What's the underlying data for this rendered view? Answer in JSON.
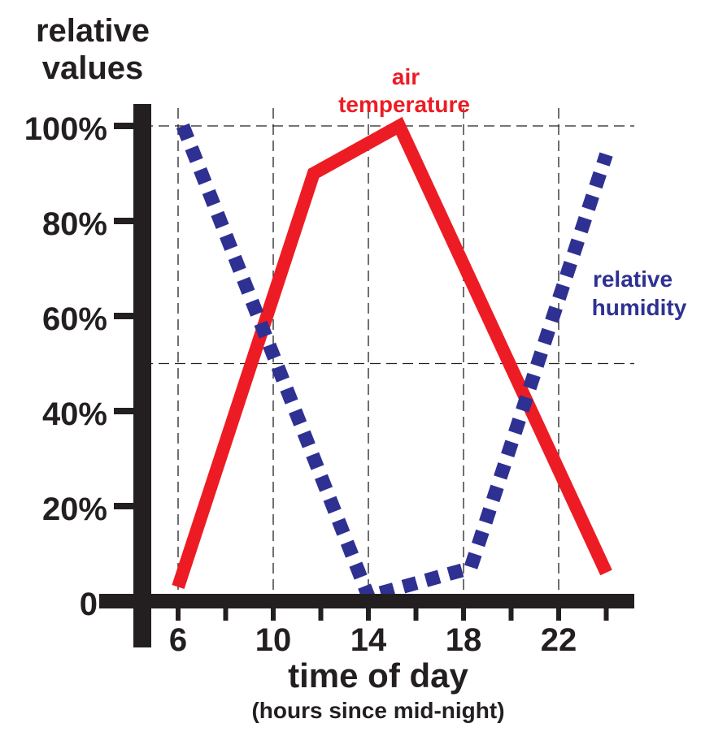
{
  "chart_data": {
    "type": "line",
    "ylabel_lines": [
      "relative",
      "values"
    ],
    "xlabel": "time  of  day",
    "xlabel_sub": "(hours  since  mid-night)",
    "x_ticks": [
      6,
      10,
      14,
      18,
      22
    ],
    "x_tick_labels": [
      "6",
      "10",
      "14",
      "18",
      "22"
    ],
    "y_ticks": [
      0,
      20,
      40,
      60,
      80,
      100
    ],
    "y_tick_labels": [
      "0",
      "20%",
      "40%",
      "60%",
      "80%",
      "100%"
    ],
    "xlim": [
      2,
      26
    ],
    "ylim": [
      0,
      100
    ],
    "grid_x": [
      6,
      10,
      14,
      18,
      22
    ],
    "grid_y": [
      50,
      100
    ],
    "series": [
      {
        "name_lines": [
          "air",
          "temperature"
        ],
        "color": "#ed1c24",
        "style": "solid",
        "x": [
          6,
          11.7,
          15.3,
          24
        ],
        "y": [
          3,
          90,
          100,
          6
        ]
      },
      {
        "name_lines": [
          "relative",
          "humidity"
        ],
        "color": "#2e3192",
        "style": "dotted",
        "x": [
          6.2,
          14,
          18.3,
          24
        ],
        "y": [
          100,
          1,
          7,
          94
        ]
      }
    ]
  }
}
